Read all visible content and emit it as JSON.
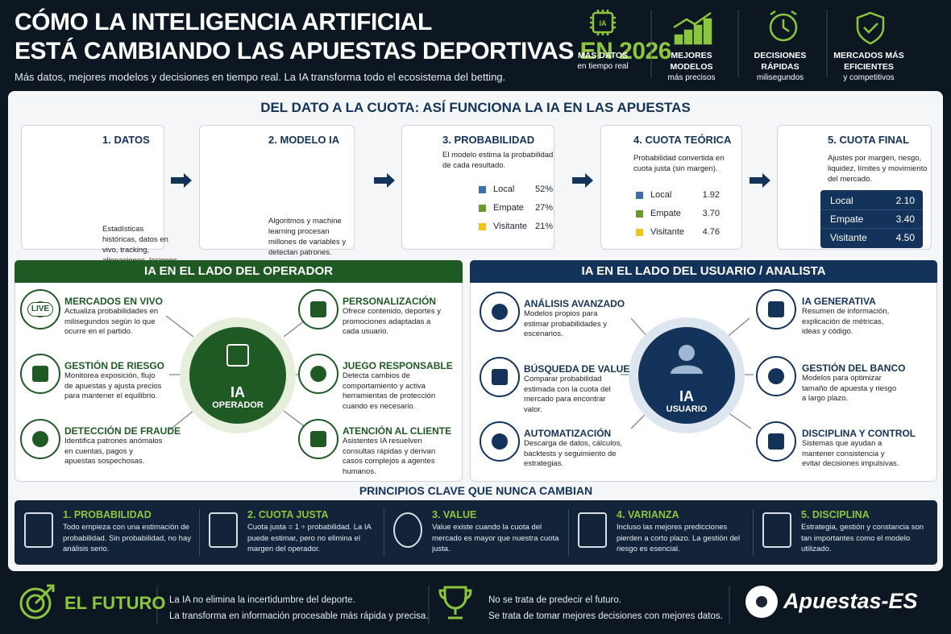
{
  "header": {
    "title_line1": "CÓMO LA INTELIGENCIA ARTIFICIAL",
    "title_line2": "ESTÁ CAMBIANDO LAS APUESTAS DEPORTIVAS",
    "title_highlight": "EN 2026",
    "subtitle": "Más datos, mejores modelos y decisiones en tiempo real. La IA transforma todo el ecosistema del betting.",
    "chip_label": "IA",
    "badges": [
      {
        "title": "MÁS DATOS",
        "sub": "en tiempo real"
      },
      {
        "title": "MEJORES MODELOS",
        "sub": "más precisos"
      },
      {
        "title": "DECISIONES RÁPIDAS",
        "sub": "milisegundos"
      },
      {
        "title": "MERCADOS MÁS EFICIENTES",
        "sub": "y competitivos"
      }
    ]
  },
  "flow": {
    "title": "DEL DATO A LA CUOTA: ASÍ FUNCIONA LA IA EN LAS APUESTAS",
    "steps": [
      {
        "title": "1. DATOS",
        "text": "Estadísticas históricas, datos en vivo, tracking, alineaciones, lesiones, noticias, mercado."
      },
      {
        "title": "2. MODELO IA",
        "text": "Algoritmos y machine learning procesan millones de variables y detectan patrones."
      },
      {
        "title": "3. PROBABILIDAD",
        "text": "El modelo estima la probabilidad de cada resultado."
      },
      {
        "title": "4. CUOTA TEÓRICA",
        "text": "Probabilidad convertida en cuota justa (sin margen)."
      },
      {
        "title": "5. CUOTA FINAL",
        "text": "Ajustes por margen, riesgo, liquidez, límites y movimiento del mercado."
      }
    ],
    "probability": {
      "labels": [
        "Local",
        "Empate",
        "Visitante"
      ],
      "values": [
        52,
        27,
        21
      ],
      "value_labels": [
        "52%",
        "27%",
        "21%"
      ],
      "colors": [
        "#3d6ea8",
        "#6a9a2e",
        "#f0c419"
      ]
    },
    "fair_odds": {
      "labels": [
        "Local",
        "Empate",
        "Visitante"
      ],
      "odds": [
        "1.92",
        "3.70",
        "4.76"
      ]
    },
    "final_odds": {
      "labels": [
        "Local",
        "Empate",
        "Visitante"
      ],
      "odds": [
        "2.10",
        "3.40",
        "4.50"
      ]
    }
  },
  "operator": {
    "title": "IA EN EL LADO DEL OPERADOR",
    "center_line1": "IA",
    "center_line2": "OPERADOR",
    "live_label": "LIVE",
    "items": [
      {
        "title": "MERCADOS EN VIVO",
        "text": "Actualiza probabilidades en milisegundos según lo que ocurre en el partido."
      },
      {
        "title": "GESTIÓN DE RIESGO",
        "text": "Monitorea exposición, flujo de apuestas y ajusta precios para mantener el equilibrio."
      },
      {
        "title": "DETECCIÓN DE FRAUDE",
        "text": "Identifica patrones anómalos en cuentas, pagos y apuestas sospechosas."
      },
      {
        "title": "PERSONALIZACIÓN",
        "text": "Ofrece contenido, deportes y promociones adaptadas a cada usuario."
      },
      {
        "title": "JUEGO RESPONSABLE",
        "text": "Detecta cambios de comportamiento y activa herramientas de protección cuando es necesario."
      },
      {
        "title": "ATENCIÓN AL CLIENTE",
        "text": "Asistentes IA resuelven consultas rápidas y derivan casos complejos a agentes humanos."
      }
    ]
  },
  "user": {
    "title": "IA EN EL LADO DEL USUARIO / ANALISTA",
    "center_line1": "IA",
    "center_line2": "USUARIO",
    "items": [
      {
        "title": "ANÁLISIS AVANZADO",
        "text": "Modelos propios para estimar probabilidades y escenarios."
      },
      {
        "title": "BÚSQUEDA DE VALUE",
        "text": "Comparar probabilidad estimada con la cuota del mercado para encontrar valor."
      },
      {
        "title": "AUTOMATIZACIÓN",
        "text": "Descarga de datos, cálculos, backtests y seguimiento de estrategias."
      },
      {
        "title": "IA GENERATIVA",
        "text": "Resumen de información, explicación de métricas, ideas y código."
      },
      {
        "title": "GESTIÓN DEL BANCO",
        "text": "Modelos para optimizar tamaño de apuesta y riesgo a largo plazo."
      },
      {
        "title": "DISCIPLINA Y CONTROL",
        "text": "Sistemas que ayudan a mantener consistencia y evitar decisiones impulsivas."
      }
    ]
  },
  "principles": {
    "title": "PRINCIPIOS CLAVE QUE NUNCA CAMBIAN",
    "items": [
      {
        "title": "1. PROBABILIDAD",
        "text": "Todo empieza con una estimación de probabilidad. Sin probabilidad, no hay análisis serio."
      },
      {
        "title": "2. CUOTA JUSTA",
        "text": "Cuota justa = 1 ÷ probabilidad. La IA puede estimar, pero no elimina el margen del operador."
      },
      {
        "title": "3. VALUE",
        "text": "Value existe cuando la cuota del mercado es mayor que nuestra cuota justa."
      },
      {
        "title": "4. VARIANZA",
        "text": "Incluso las mejores predicciones pierden a corto plazo. La gestión del riesgo es esencial."
      },
      {
        "title": "5. DISCIPLINA",
        "text": "Estrategia, gestión y constancia son tan importantes como el modelo utilizado."
      }
    ]
  },
  "footer": {
    "title": "EL FUTURO",
    "text1_line1": "La IA no elimina la incertidumbre del deporte.",
    "text1_line2": "La transforma en información procesable más rápida y precisa.",
    "text2_line1": "No se trata de predecir el futuro.",
    "text2_line2": "Se trata de tomar mejores decisiones con mejores datos.",
    "brand": "Apuestas-ES"
  }
}
